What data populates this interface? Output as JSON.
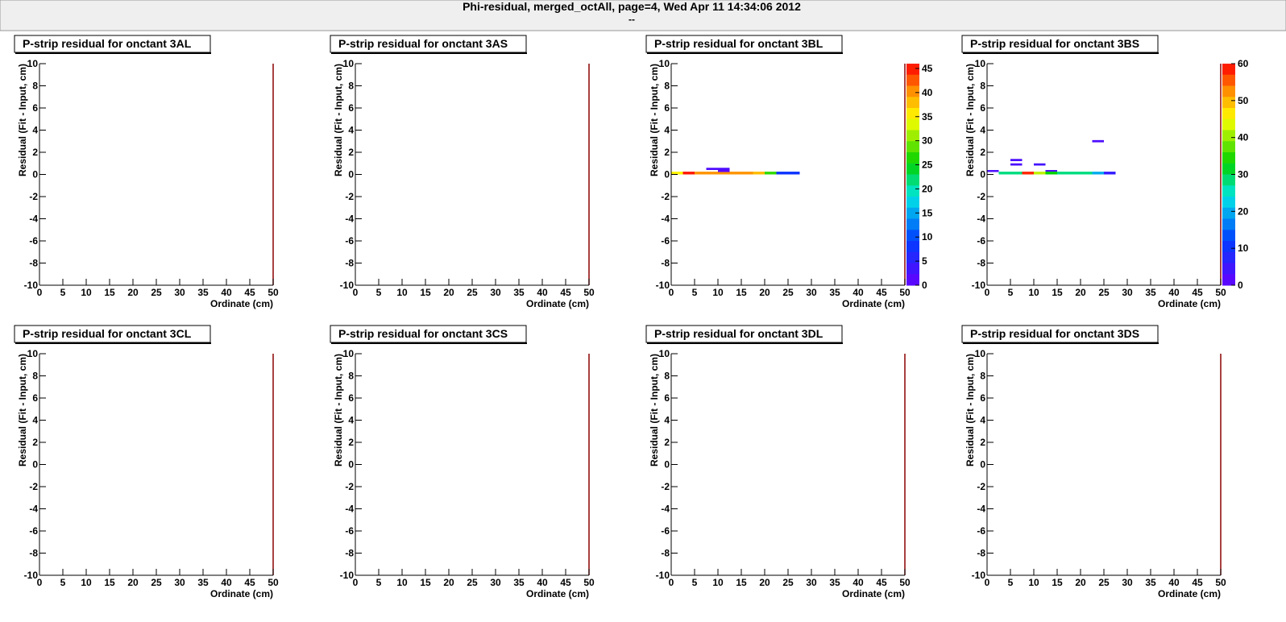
{
  "header": {
    "title": "Phi-residual, merged_octAll, page=4,  Wed Apr 11 14:34:06 2012",
    "subtitle": "--"
  },
  "chart_data": [
    {
      "type": "heatmap",
      "title": "P-strip residual for onctant 3AL",
      "xlabel": "Ordinate (cm)",
      "ylabel": "Residual (Fit - Input, cm)",
      "xlim": [
        0,
        50
      ],
      "ylim": [
        -10,
        10
      ],
      "xticks": [
        0,
        5,
        10,
        15,
        20,
        25,
        30,
        35,
        40,
        45,
        50
      ],
      "yticks": [
        -10,
        -8,
        -6,
        -4,
        -2,
        0,
        2,
        4,
        6,
        8,
        10
      ],
      "cells": []
    },
    {
      "type": "heatmap",
      "title": "P-strip residual for onctant 3AS",
      "xlabel": "Ordinate (cm)",
      "ylabel": "Residual (Fit - Input, cm)",
      "xlim": [
        0,
        50
      ],
      "ylim": [
        -10,
        10
      ],
      "xticks": [
        0,
        5,
        10,
        15,
        20,
        25,
        30,
        35,
        40,
        45,
        50
      ],
      "yticks": [
        -10,
        -8,
        -6,
        -4,
        -2,
        0,
        2,
        4,
        6,
        8,
        10
      ],
      "cells": []
    },
    {
      "type": "heatmap",
      "title": "P-strip residual for onctant 3BL",
      "xlabel": "Ordinate (cm)",
      "ylabel": "Residual (Fit - Input, cm)",
      "xlim": [
        0,
        50
      ],
      "ylim": [
        -10,
        10
      ],
      "xticks": [
        0,
        5,
        10,
        15,
        20,
        25,
        30,
        35,
        40,
        45,
        50
      ],
      "yticks": [
        -10,
        -8,
        -6,
        -4,
        -2,
        0,
        2,
        4,
        6,
        8,
        10
      ],
      "zlim": [
        0,
        46
      ],
      "zticks": [
        0,
        5,
        10,
        15,
        20,
        25,
        30,
        35,
        40,
        45
      ],
      "cells": [
        {
          "x": [
            0,
            2.5
          ],
          "y": [
            0,
            0.25
          ],
          "value": 35
        },
        {
          "x": [
            2.5,
            5
          ],
          "y": [
            0,
            0.25
          ],
          "value": 45
        },
        {
          "x": [
            5,
            7.5
          ],
          "y": [
            0,
            0.25
          ],
          "value": 40
        },
        {
          "x": [
            7.5,
            17.5
          ],
          "y": [
            0,
            0.25
          ],
          "value": 40
        },
        {
          "x": [
            17.5,
            20
          ],
          "y": [
            0,
            0.25
          ],
          "value": 38
        },
        {
          "x": [
            20,
            22.5
          ],
          "y": [
            0,
            0.25
          ],
          "value": 27
        },
        {
          "x": [
            22.5,
            27.5
          ],
          "y": [
            0,
            0.25
          ],
          "value": 8
        },
        {
          "x": [
            7.5,
            12.5
          ],
          "y": [
            0.4,
            0.6
          ],
          "value": 2
        },
        {
          "x": [
            10,
            12.5
          ],
          "y": [
            0.25,
            0.4
          ],
          "value": 1
        }
      ]
    },
    {
      "type": "heatmap",
      "title": "P-strip residual for onctant 3BS",
      "xlabel": "Ordinate (cm)",
      "ylabel": "Residual (Fit - Input, cm)",
      "xlim": [
        0,
        50
      ],
      "ylim": [
        -10,
        10
      ],
      "xticks": [
        0,
        5,
        10,
        15,
        20,
        25,
        30,
        35,
        40,
        45,
        50
      ],
      "yticks": [
        -10,
        -8,
        -6,
        -4,
        -2,
        0,
        2,
        4,
        6,
        8,
        10
      ],
      "zlim": [
        0,
        60
      ],
      "zticks": [
        0,
        10,
        20,
        30,
        40,
        50,
        60
      ],
      "cells": [
        {
          "x": [
            0,
            2.5
          ],
          "y": [
            0.25,
            0.4
          ],
          "value": 3
        },
        {
          "x": [
            5,
            7.5
          ],
          "y": [
            1.2,
            1.4
          ],
          "value": 3
        },
        {
          "x": [
            5,
            7.5
          ],
          "y": [
            0.8,
            1.0
          ],
          "value": 3
        },
        {
          "x": [
            10,
            12.5
          ],
          "y": [
            0.8,
            1.0
          ],
          "value": 4
        },
        {
          "x": [
            12.5,
            15
          ],
          "y": [
            0.25,
            0.4
          ],
          "value": 3
        },
        {
          "x": [
            22.5,
            25
          ],
          "y": [
            2.9,
            3.1
          ],
          "value": 3
        },
        {
          "x": [
            2.5,
            7.5
          ],
          "y": [
            0,
            0.25
          ],
          "value": 28
        },
        {
          "x": [
            7.5,
            10
          ],
          "y": [
            0,
            0.25
          ],
          "value": 58
        },
        {
          "x": [
            10,
            12.5
          ],
          "y": [
            0,
            0.25
          ],
          "value": 42
        },
        {
          "x": [
            12.5,
            15
          ],
          "y": [
            0,
            0.25
          ],
          "value": 33
        },
        {
          "x": [
            15,
            22.5
          ],
          "y": [
            0,
            0.25
          ],
          "value": 28
        },
        {
          "x": [
            22.5,
            25
          ],
          "y": [
            0,
            0.25
          ],
          "value": 20
        },
        {
          "x": [
            25,
            27.5
          ],
          "y": [
            0,
            0.25
          ],
          "value": 6
        }
      ]
    },
    {
      "type": "heatmap",
      "title": "P-strip residual for onctant 3CL",
      "xlabel": "Ordinate (cm)",
      "ylabel": "Residual (Fit - Input, cm)",
      "xlim": [
        0,
        50
      ],
      "ylim": [
        -10,
        10
      ],
      "xticks": [
        0,
        5,
        10,
        15,
        20,
        25,
        30,
        35,
        40,
        45,
        50
      ],
      "yticks": [
        -10,
        -8,
        -6,
        -4,
        -2,
        0,
        2,
        4,
        6,
        8,
        10
      ],
      "cells": []
    },
    {
      "type": "heatmap",
      "title": "P-strip residual for onctant 3CS",
      "xlabel": "Ordinate (cm)",
      "ylabel": "Residual (Fit - Input, cm)",
      "xlim": [
        0,
        50
      ],
      "ylim": [
        -10,
        10
      ],
      "xticks": [
        0,
        5,
        10,
        15,
        20,
        25,
        30,
        35,
        40,
        45,
        50
      ],
      "yticks": [
        -10,
        -8,
        -6,
        -4,
        -2,
        0,
        2,
        4,
        6,
        8,
        10
      ],
      "cells": []
    },
    {
      "type": "heatmap",
      "title": "P-strip residual for onctant 3DL",
      "xlabel": "Ordinate (cm)",
      "ylabel": "Residual (Fit - Input, cm)",
      "xlim": [
        0,
        50
      ],
      "ylim": [
        -10,
        10
      ],
      "xticks": [
        0,
        5,
        10,
        15,
        20,
        25,
        30,
        35,
        40,
        45,
        50
      ],
      "yticks": [
        -10,
        -8,
        -6,
        -4,
        -2,
        0,
        2,
        4,
        6,
        8,
        10
      ],
      "cells": []
    },
    {
      "type": "heatmap",
      "title": "P-strip residual for onctant 3DS",
      "xlabel": "Ordinate (cm)",
      "ylabel": "Residual (Fit - Input, cm)",
      "xlim": [
        0,
        50
      ],
      "ylim": [
        -10,
        10
      ],
      "xticks": [
        0,
        5,
        10,
        15,
        20,
        25,
        30,
        35,
        40,
        45,
        50
      ],
      "yticks": [
        -10,
        -8,
        -6,
        -4,
        -2,
        0,
        2,
        4,
        6,
        8,
        10
      ],
      "cells": []
    }
  ]
}
